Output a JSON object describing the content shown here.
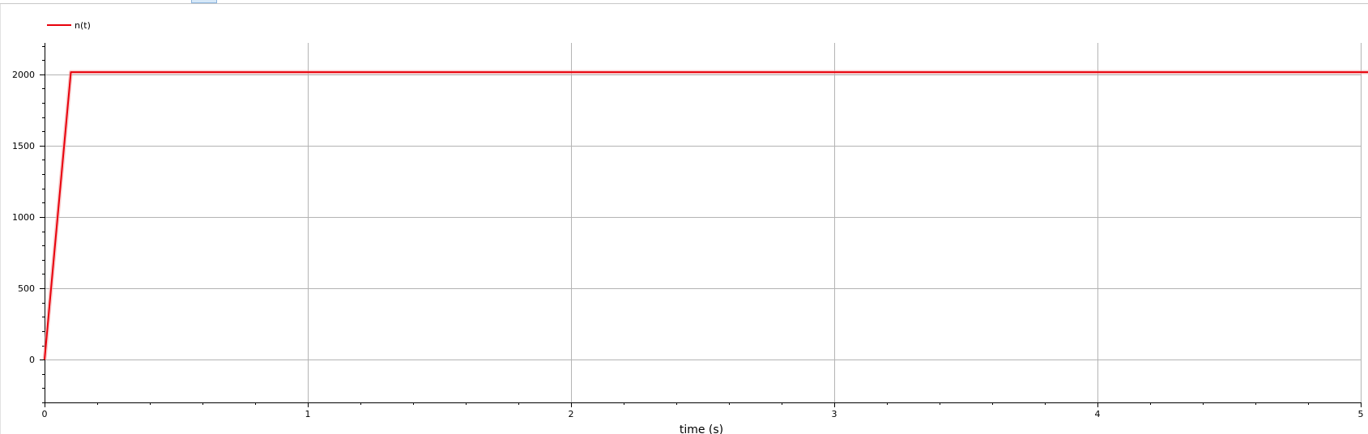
{
  "colors": {
    "series": "#e8000b",
    "series_glow": "#f4aaaa",
    "grid": "#b4b4b4",
    "axis": "#000000"
  },
  "chart_data": {
    "type": "line",
    "title": "",
    "xlabel": "time (s)",
    "ylabel": "",
    "xlim": [
      0,
      5
    ],
    "ylim": [
      -300,
      2220
    ],
    "grid": true,
    "legend_position": "top-left",
    "x_ticks": [
      0,
      1,
      2,
      3,
      4,
      5
    ],
    "x_tick_labels": [
      "0",
      "1",
      "2",
      "3",
      "4",
      "5"
    ],
    "y_ticks": [
      0,
      500,
      1000,
      1500,
      2000
    ],
    "y_tick_labels": [
      "0",
      "500",
      "1000",
      "1500",
      "2000"
    ],
    "series": [
      {
        "name": "n(t)",
        "x": [
          0,
          0.1,
          5.03
        ],
        "y": [
          0,
          2015,
          2015
        ]
      }
    ]
  }
}
